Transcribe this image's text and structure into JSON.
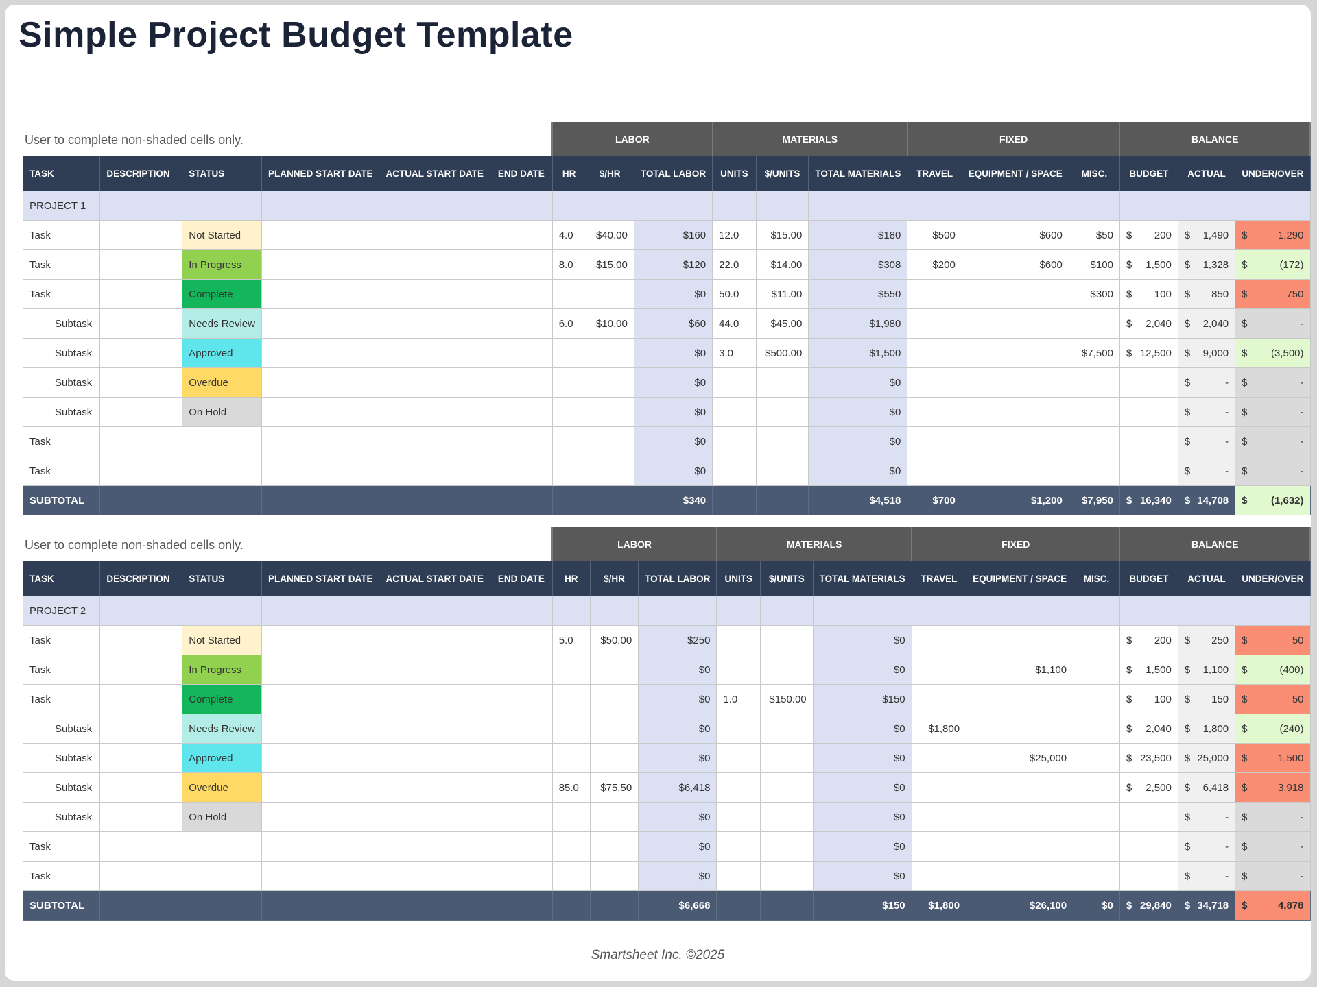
{
  "title": "Simple Project Budget Template",
  "footer": "Smartsheet Inc. ©2025",
  "status_colors": {
    "Not Started": "#fff2cc",
    "In Progress": "#92d050",
    "Complete": "#13b65a",
    "Needs Review": "#b4ece8",
    "Approved": "#5ee6ec",
    "Overdue": "#ffd966",
    "On Hold": "#d9d9d9"
  },
  "headers": {
    "groups": [
      "LABOR",
      "MATERIALS",
      "FIXED",
      "BALANCE"
    ],
    "columns": [
      "TASK",
      "DESCRIPTION",
      "STATUS",
      "PLANNED START DATE",
      "ACTUAL START DATE",
      "END DATE",
      "HR",
      "$/HR",
      "TOTAL LABOR",
      "UNITS",
      "$/UNITS",
      "TOTAL MATERIALS",
      "TRAVEL",
      "EQUIPMENT / SPACE",
      "MISC.",
      "BUDGET",
      "ACTUAL",
      "UNDER/OVER"
    ]
  },
  "projects": [
    {
      "note": "User to complete non-shaded cells only.",
      "name": "PROJECT 1",
      "rows": [
        {
          "task": "Task",
          "sub": false,
          "status": "Not Started",
          "hr": "4.0",
          "rate": "$40.00",
          "total_labor": "$160",
          "units": "12.0",
          "unit_rate": "$15.00",
          "total_materials": "$180",
          "travel": "$500",
          "equipment": "$600",
          "misc": "$50",
          "budget": "200",
          "actual": "1,490",
          "under_over": "1,290",
          "uo_state": "over"
        },
        {
          "task": "Task",
          "sub": false,
          "status": "In Progress",
          "hr": "8.0",
          "rate": "$15.00",
          "total_labor": "$120",
          "units": "22.0",
          "unit_rate": "$14.00",
          "total_materials": "$308",
          "travel": "$200",
          "equipment": "$600",
          "misc": "$100",
          "budget": "1,500",
          "actual": "1,328",
          "under_over": "(172)",
          "uo_state": "under"
        },
        {
          "task": "Task",
          "sub": false,
          "status": "Complete",
          "hr": "",
          "rate": "",
          "total_labor": "$0",
          "units": "50.0",
          "unit_rate": "$11.00",
          "total_materials": "$550",
          "travel": "",
          "equipment": "",
          "misc": "$300",
          "budget": "100",
          "actual": "850",
          "under_over": "750",
          "uo_state": "over"
        },
        {
          "task": "Subtask",
          "sub": true,
          "status": "Needs Review",
          "hr": "6.0",
          "rate": "$10.00",
          "total_labor": "$60",
          "units": "44.0",
          "unit_rate": "$45.00",
          "total_materials": "$1,980",
          "travel": "",
          "equipment": "",
          "misc": "",
          "budget": "2,040",
          "actual": "2,040",
          "under_over": "-",
          "uo_state": "even"
        },
        {
          "task": "Subtask",
          "sub": true,
          "status": "Approved",
          "hr": "",
          "rate": "",
          "total_labor": "$0",
          "units": "3.0",
          "unit_rate": "$500.00",
          "total_materials": "$1,500",
          "travel": "",
          "equipment": "",
          "misc": "$7,500",
          "budget": "12,500",
          "actual": "9,000",
          "under_over": "(3,500)",
          "uo_state": "under"
        },
        {
          "task": "Subtask",
          "sub": true,
          "status": "Overdue",
          "hr": "",
          "rate": "",
          "total_labor": "$0",
          "units": "",
          "unit_rate": "",
          "total_materials": "$0",
          "travel": "",
          "equipment": "",
          "misc": "",
          "budget": "",
          "actual": "-",
          "under_over": "-",
          "uo_state": "even"
        },
        {
          "task": "Subtask",
          "sub": true,
          "status": "On Hold",
          "hr": "",
          "rate": "",
          "total_labor": "$0",
          "units": "",
          "unit_rate": "",
          "total_materials": "$0",
          "travel": "",
          "equipment": "",
          "misc": "",
          "budget": "",
          "actual": "-",
          "under_over": "-",
          "uo_state": "even"
        },
        {
          "task": "Task",
          "sub": false,
          "status": "",
          "hr": "",
          "rate": "",
          "total_labor": "$0",
          "units": "",
          "unit_rate": "",
          "total_materials": "$0",
          "travel": "",
          "equipment": "",
          "misc": "",
          "budget": "",
          "actual": "-",
          "under_over": "-",
          "uo_state": "even"
        },
        {
          "task": "Task",
          "sub": false,
          "status": "",
          "hr": "",
          "rate": "",
          "total_labor": "$0",
          "units": "",
          "unit_rate": "",
          "total_materials": "$0",
          "travel": "",
          "equipment": "",
          "misc": "",
          "budget": "",
          "actual": "-",
          "under_over": "-",
          "uo_state": "even"
        }
      ],
      "subtotal": {
        "label": "SUBTOTAL",
        "total_labor": "$340",
        "total_materials": "$4,518",
        "travel": "$700",
        "equipment": "$1,200",
        "misc": "$7,950",
        "budget": "16,340",
        "actual": "14,708",
        "under_over": "(1,632)",
        "uo_state": "under"
      }
    },
    {
      "note": "User to complete non-shaded cells only.",
      "name": "PROJECT 2",
      "rows": [
        {
          "task": "Task",
          "sub": false,
          "status": "Not Started",
          "hr": "5.0",
          "rate": "$50.00",
          "total_labor": "$250",
          "units": "",
          "unit_rate": "",
          "total_materials": "$0",
          "travel": "",
          "equipment": "",
          "misc": "",
          "budget": "200",
          "actual": "250",
          "under_over": "50",
          "uo_state": "over"
        },
        {
          "task": "Task",
          "sub": false,
          "status": "In Progress",
          "hr": "",
          "rate": "",
          "total_labor": "$0",
          "units": "",
          "unit_rate": "",
          "total_materials": "$0",
          "travel": "",
          "equipment": "$1,100",
          "misc": "",
          "budget": "1,500",
          "actual": "1,100",
          "under_over": "(400)",
          "uo_state": "under"
        },
        {
          "task": "Task",
          "sub": false,
          "status": "Complete",
          "hr": "",
          "rate": "",
          "total_labor": "$0",
          "units": "1.0",
          "unit_rate": "$150.00",
          "total_materials": "$150",
          "travel": "",
          "equipment": "",
          "misc": "",
          "budget": "100",
          "actual": "150",
          "under_over": "50",
          "uo_state": "over"
        },
        {
          "task": "Subtask",
          "sub": true,
          "status": "Needs Review",
          "hr": "",
          "rate": "",
          "total_labor": "$0",
          "units": "",
          "unit_rate": "",
          "total_materials": "$0",
          "travel": "$1,800",
          "equipment": "",
          "misc": "",
          "budget": "2,040",
          "actual": "1,800",
          "under_over": "(240)",
          "uo_state": "under"
        },
        {
          "task": "Subtask",
          "sub": true,
          "status": "Approved",
          "hr": "",
          "rate": "",
          "total_labor": "$0",
          "units": "",
          "unit_rate": "",
          "total_materials": "$0",
          "travel": "",
          "equipment": "$25,000",
          "misc": "",
          "budget": "23,500",
          "actual": "25,000",
          "under_over": "1,500",
          "uo_state": "over"
        },
        {
          "task": "Subtask",
          "sub": true,
          "status": "Overdue",
          "hr": "85.0",
          "rate": "$75.50",
          "total_labor": "$6,418",
          "units": "",
          "unit_rate": "",
          "total_materials": "$0",
          "travel": "",
          "equipment": "",
          "misc": "",
          "budget": "2,500",
          "actual": "6,418",
          "under_over": "3,918",
          "uo_state": "over"
        },
        {
          "task": "Subtask",
          "sub": true,
          "status": "On Hold",
          "hr": "",
          "rate": "",
          "total_labor": "$0",
          "units": "",
          "unit_rate": "",
          "total_materials": "$0",
          "travel": "",
          "equipment": "",
          "misc": "",
          "budget": "",
          "actual": "-",
          "under_over": "-",
          "uo_state": "even"
        },
        {
          "task": "Task",
          "sub": false,
          "status": "",
          "hr": "",
          "rate": "",
          "total_labor": "$0",
          "units": "",
          "unit_rate": "",
          "total_materials": "$0",
          "travel": "",
          "equipment": "",
          "misc": "",
          "budget": "",
          "actual": "-",
          "under_over": "-",
          "uo_state": "even"
        },
        {
          "task": "Task",
          "sub": false,
          "status": "",
          "hr": "",
          "rate": "",
          "total_labor": "$0",
          "units": "",
          "unit_rate": "",
          "total_materials": "$0",
          "travel": "",
          "equipment": "",
          "misc": "",
          "budget": "",
          "actual": "-",
          "under_over": "-",
          "uo_state": "even"
        }
      ],
      "subtotal": {
        "label": "SUBTOTAL",
        "total_labor": "$6,668",
        "total_materials": "$150",
        "travel": "$1,800",
        "equipment": "$26,100",
        "misc": "$0",
        "budget": "29,840",
        "actual": "34,718",
        "under_over": "4,878",
        "uo_state": "over"
      }
    }
  ],
  "currency_symbol": "$",
  "under_over_colors": {
    "over": "#f98e75",
    "under": "#e2f9d0",
    "even": "#dadada"
  }
}
